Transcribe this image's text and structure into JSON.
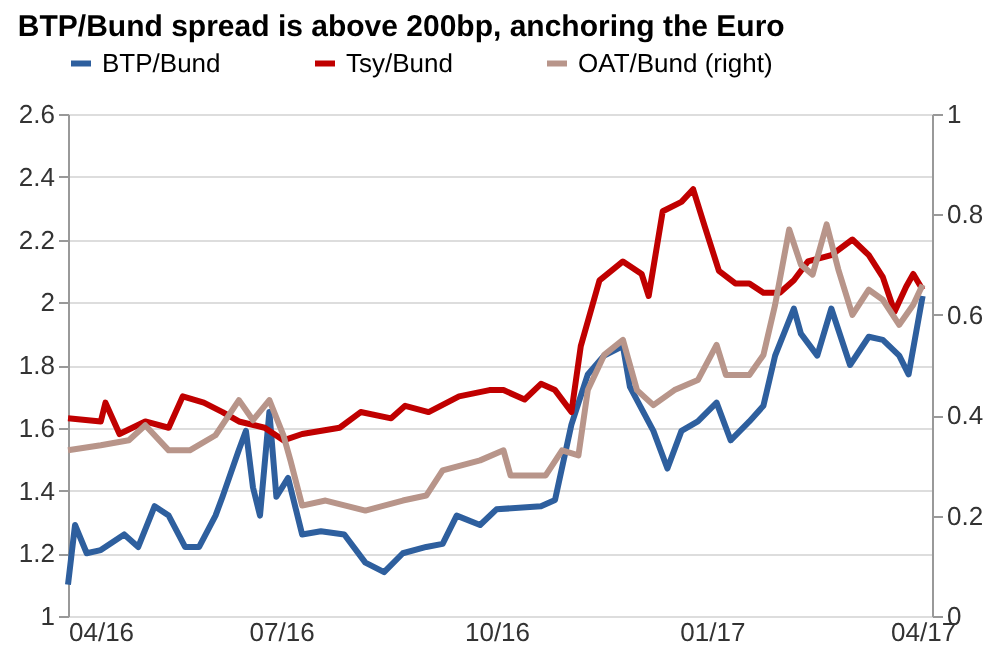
{
  "chart_data": {
    "type": "line",
    "title": "BTP/Bund spread is above 200bp, anchoring the Euro",
    "xlim": [
      "2016-04-01",
      "2017-04-05"
    ],
    "xticks": [
      {
        "value": "2016-04-01",
        "label": "04/16"
      },
      {
        "value": "2016-07-01",
        "label": "07/16"
      },
      {
        "value": "2016-10-01",
        "label": "10/16"
      },
      {
        "value": "2017-01-01",
        "label": "01/17"
      },
      {
        "value": "2017-04-01",
        "label": "04/17"
      }
    ],
    "ylim": [
      1,
      2.6
    ],
    "yticks": [
      1,
      1.2,
      1.4,
      1.6,
      1.8,
      2,
      2.2,
      2.4,
      2.6
    ],
    "y2lim": [
      0,
      1
    ],
    "y2ticks": [
      0,
      0.2,
      0.4,
      0.6,
      0.8,
      1
    ],
    "grid": "y",
    "legend": "top",
    "line_style": "solid",
    "marker": "none",
    "series": [
      {
        "name": "BTP/Bund",
        "color": "#2e5f9e",
        "x": [
          "2016-04-01",
          "2016-04-04",
          "2016-04-09",
          "2016-04-15",
          "2016-04-25",
          "2016-05-01",
          "2016-05-08",
          "2016-05-14",
          "2016-05-21",
          "2016-05-27",
          "2016-06-03",
          "2016-06-06",
          "2016-06-13",
          "2016-06-16",
          "2016-06-19",
          "2016-06-22",
          "2016-06-26",
          "2016-06-29",
          "2016-07-04",
          "2016-07-10",
          "2016-07-18",
          "2016-07-28",
          "2016-08-06",
          "2016-08-14",
          "2016-08-22",
          "2016-09-01",
          "2016-09-08",
          "2016-09-14",
          "2016-09-24",
          "2016-10-01",
          "2016-10-20",
          "2016-10-26",
          "2016-11-02",
          "2016-11-09",
          "2016-11-16",
          "2016-11-24",
          "2016-11-27",
          "2016-12-07",
          "2016-12-13",
          "2016-12-19",
          "2016-12-26",
          "2017-01-03",
          "2017-01-09",
          "2017-01-17",
          "2017-01-23",
          "2017-01-28",
          "2017-02-05",
          "2017-02-08",
          "2017-02-15",
          "2017-02-21",
          "2017-03-01",
          "2017-03-09",
          "2017-03-15",
          "2017-03-22",
          "2017-03-26",
          "2017-04-01"
        ],
        "values": [
          1.1,
          1.29,
          1.2,
          1.21,
          1.26,
          1.22,
          1.35,
          1.32,
          1.22,
          1.22,
          1.32,
          1.38,
          1.53,
          1.59,
          1.41,
          1.32,
          1.65,
          1.38,
          1.44,
          1.26,
          1.27,
          1.26,
          1.17,
          1.14,
          1.2,
          1.22,
          1.23,
          1.32,
          1.29,
          1.34,
          1.35,
          1.37,
          1.61,
          1.77,
          1.83,
          1.86,
          1.73,
          1.59,
          1.47,
          1.59,
          1.62,
          1.68,
          1.56,
          1.62,
          1.67,
          1.83,
          1.98,
          1.9,
          1.83,
          1.98,
          1.8,
          1.89,
          1.88,
          1.83,
          1.77,
          2.02
        ]
      },
      {
        "name": "Tsy/Bund",
        "color": "#c00000",
        "x": [
          "2016-04-01",
          "2016-04-15",
          "2016-04-17",
          "2016-04-23",
          "2016-05-04",
          "2016-05-14",
          "2016-05-20",
          "2016-05-29",
          "2016-06-06",
          "2016-06-13",
          "2016-06-24",
          "2016-07-02",
          "2016-07-10",
          "2016-07-26",
          "2016-08-04",
          "2016-08-17",
          "2016-08-23",
          "2016-09-02",
          "2016-09-15",
          "2016-09-28",
          "2016-10-04",
          "2016-10-13",
          "2016-10-20",
          "2016-10-26",
          "2016-11-02",
          "2016-11-06",
          "2016-11-14",
          "2016-11-24",
          "2016-12-02",
          "2016-12-05",
          "2016-12-11",
          "2016-12-19",
          "2016-12-24",
          "2016-12-29",
          "2017-01-04",
          "2017-01-11",
          "2017-01-17",
          "2017-01-23",
          "2017-01-30",
          "2017-02-05",
          "2017-02-11",
          "2017-02-21",
          "2017-03-02",
          "2017-03-09",
          "2017-03-15",
          "2017-03-20",
          "2017-03-25",
          "2017-03-28",
          "2017-04-01"
        ],
        "values": [
          1.63,
          1.62,
          1.68,
          1.58,
          1.62,
          1.6,
          1.7,
          1.68,
          1.65,
          1.62,
          1.6,
          1.56,
          1.58,
          1.6,
          1.65,
          1.63,
          1.67,
          1.65,
          1.7,
          1.72,
          1.72,
          1.69,
          1.74,
          1.72,
          1.65,
          1.86,
          2.07,
          2.13,
          2.09,
          2.02,
          2.29,
          2.32,
          2.36,
          2.24,
          2.1,
          2.06,
          2.06,
          2.03,
          2.03,
          2.07,
          2.13,
          2.15,
          2.2,
          2.15,
          2.08,
          1.97,
          2.05,
          2.09,
          2.04
        ]
      },
      {
        "name": "OAT/Bund (right)",
        "color": "#b8958a",
        "axis": "y2",
        "x": [
          "2016-04-01",
          "2016-04-15",
          "2016-04-27",
          "2016-05-04",
          "2016-05-14",
          "2016-05-23",
          "2016-06-03",
          "2016-06-13",
          "2016-06-19",
          "2016-06-26",
          "2016-07-02",
          "2016-07-05",
          "2016-07-10",
          "2016-07-20",
          "2016-08-06",
          "2016-08-22",
          "2016-09-01",
          "2016-09-08",
          "2016-09-24",
          "2016-10-04",
          "2016-10-07",
          "2016-10-22",
          "2016-10-29",
          "2016-11-05",
          "2016-11-09",
          "2016-11-16",
          "2016-11-24",
          "2016-11-30",
          "2016-12-07",
          "2016-12-16",
          "2016-12-26",
          "2017-01-03",
          "2017-01-07",
          "2017-01-17",
          "2017-01-23",
          "2017-01-28",
          "2017-02-03",
          "2017-02-08",
          "2017-02-13",
          "2017-02-19",
          "2017-02-24",
          "2017-03-02",
          "2017-03-09",
          "2017-03-15",
          "2017-03-22",
          "2017-03-28",
          "2017-04-01"
        ],
        "values": [
          0.33,
          0.34,
          0.35,
          0.38,
          0.33,
          0.33,
          0.36,
          0.43,
          0.39,
          0.43,
          0.36,
          0.31,
          0.22,
          0.23,
          0.21,
          0.23,
          0.24,
          0.29,
          0.31,
          0.33,
          0.28,
          0.28,
          0.33,
          0.32,
          0.45,
          0.52,
          0.55,
          0.45,
          0.42,
          0.45,
          0.47,
          0.54,
          0.48,
          0.48,
          0.52,
          0.62,
          0.77,
          0.7,
          0.68,
          0.78,
          0.69,
          0.6,
          0.65,
          0.63,
          0.58,
          0.62,
          0.66
        ]
      }
    ]
  }
}
